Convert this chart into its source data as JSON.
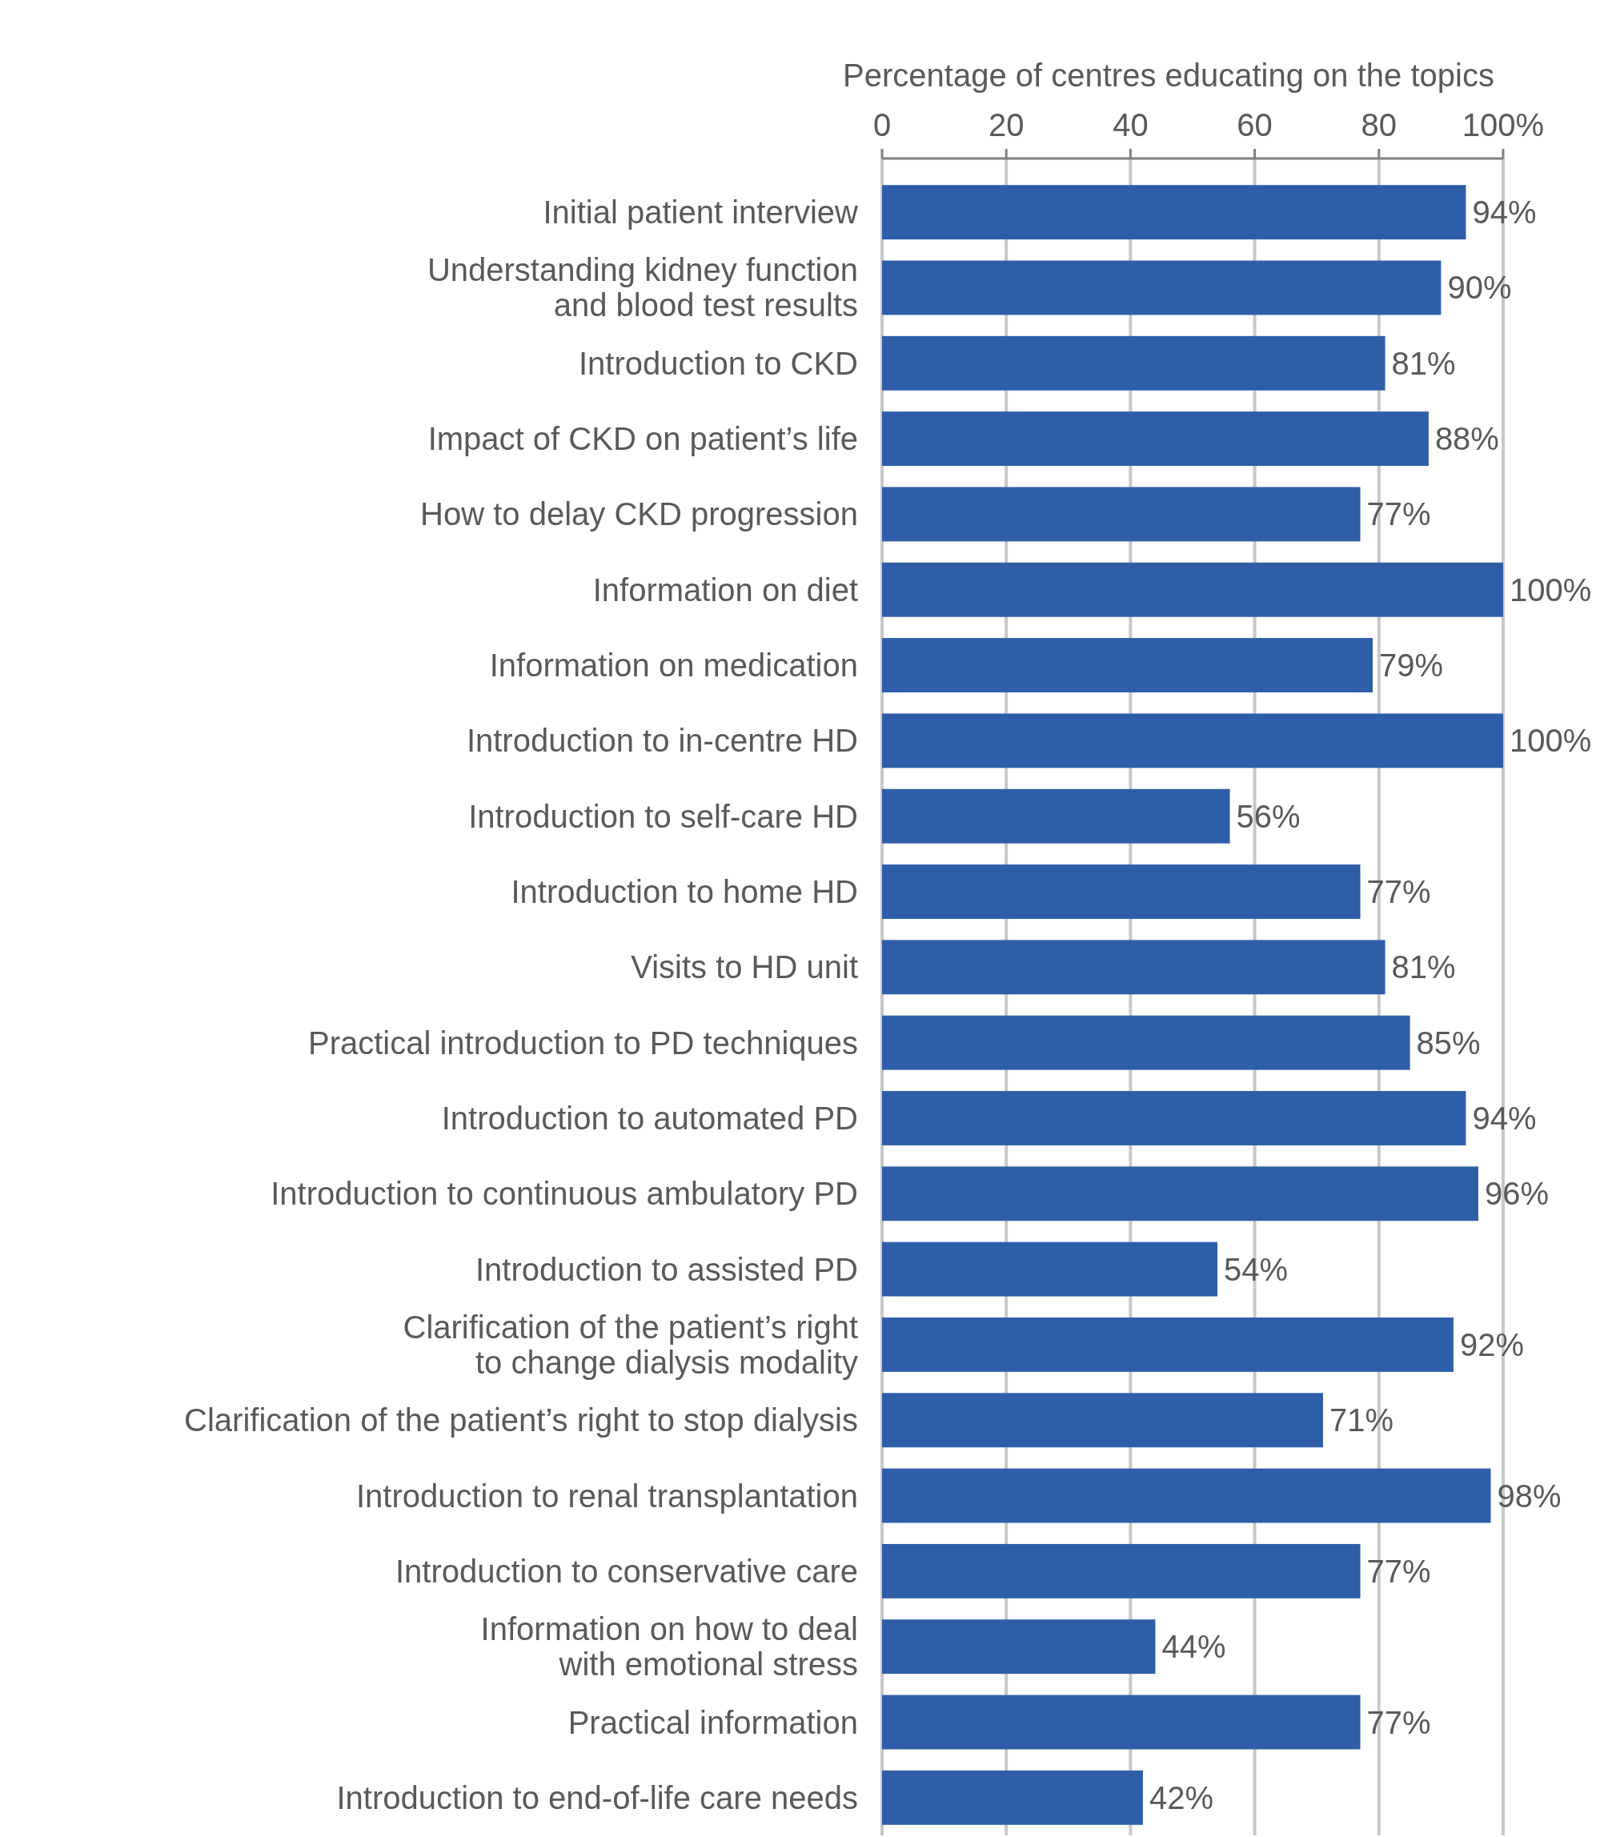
{
  "chart_data": {
    "type": "bar",
    "orientation": "horizontal",
    "xlabel": "Percentage of centres educating on the topics",
    "categories": [
      "Initial patient interview",
      "Understanding kidney function\nand blood test results",
      "Introduction to CKD",
      "Impact of CKD on patient’s life",
      "How to delay CKD progression",
      "Information on diet",
      "Information on medication",
      "Introduction to in-centre HD",
      "Introduction to self-care HD",
      "Introduction to home HD",
      "Visits to HD unit",
      "Practical introduction to PD techniques",
      "Introduction to automated PD",
      "Introduction to continuous ambulatory PD",
      "Introduction to assisted PD",
      "Clarification of the patient’s right\nto change dialysis modality",
      "Clarification of the patient’s right to stop dialysis",
      "Introduction to renal transplantation",
      "Introduction to conservative care",
      "Information on how to deal\nwith emotional stress",
      "Practical information",
      "Introduction to end-of-life care needs"
    ],
    "values": [
      94,
      90,
      81,
      88,
      77,
      100,
      79,
      100,
      56,
      77,
      81,
      85,
      94,
      96,
      54,
      92,
      71,
      98,
      77,
      44,
      77,
      42
    ],
    "value_labels": [
      "94%",
      "90%",
      "81%",
      "88%",
      "77%",
      "100%",
      "79%",
      "100%",
      "56%",
      "77%",
      "81%",
      "85%",
      "94%",
      "96%",
      "54%",
      "92%",
      "71%",
      "98%",
      "77%",
      "44%",
      "77%",
      "42%"
    ],
    "color": "#2e5ea8",
    "xlim": [
      0,
      100
    ],
    "xticks": [
      0,
      20,
      40,
      60,
      80,
      {
        "value": 100,
        "label": "100%"
      }
    ],
    "grid": "x"
  }
}
